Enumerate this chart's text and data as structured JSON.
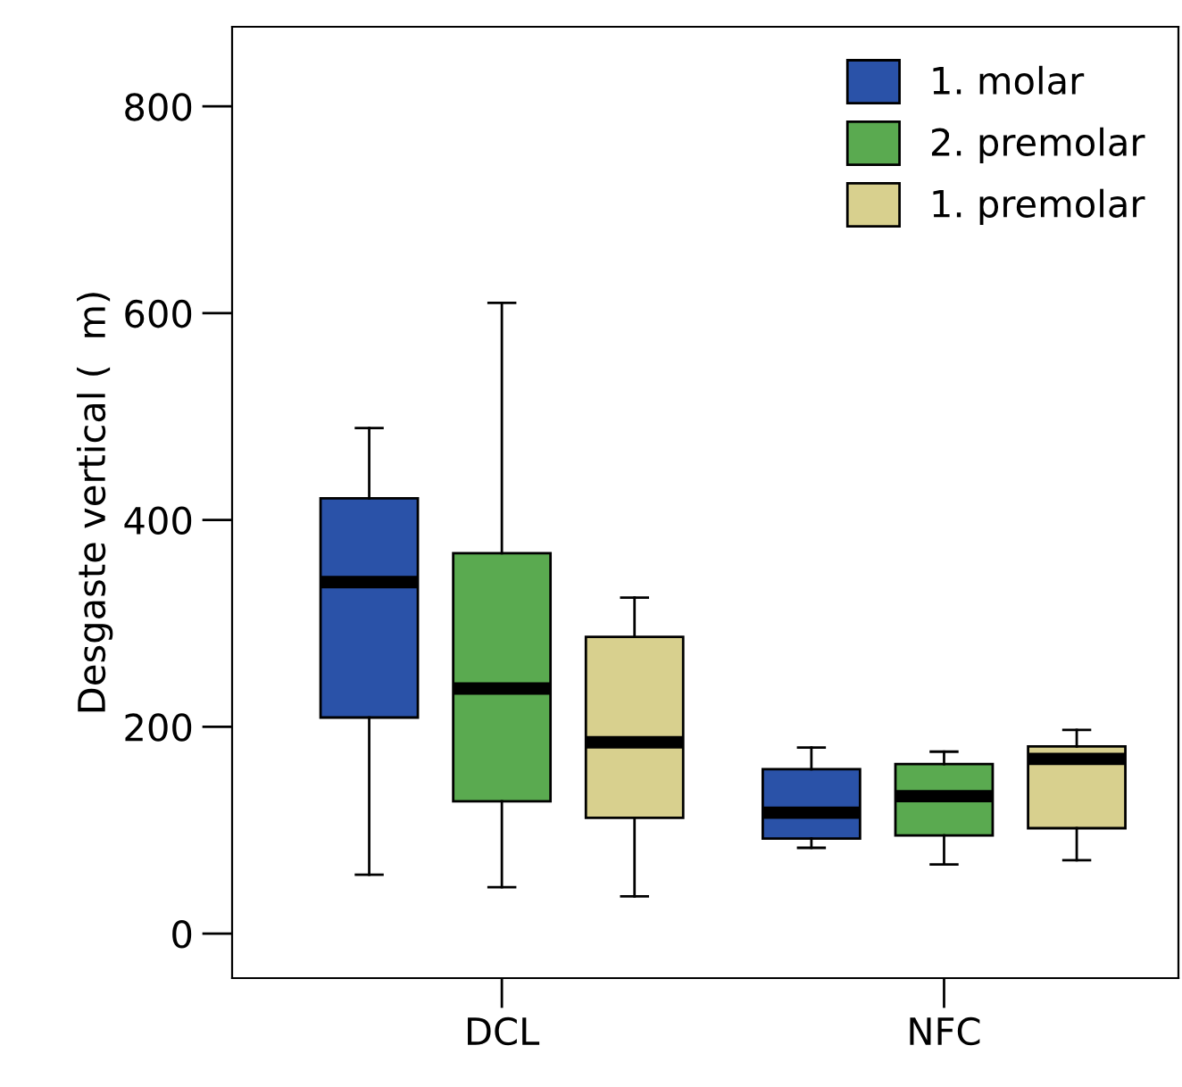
{
  "chart_data": {
    "type": "box",
    "ylabel": "Desgaste vertical (  m)",
    "categories": [
      "DCL",
      "NFC"
    ],
    "ylim": [
      -43,
      877
    ],
    "yticks": [
      0,
      200,
      400,
      600,
      800
    ],
    "grid": false,
    "legend": "top right",
    "series": [
      {
        "name": "1. molar",
        "color": "#2a52a8",
        "boxes": [
          {
            "low": 57,
            "q1": 209,
            "median": 340,
            "q3": 421,
            "high": 489
          },
          {
            "low": 83,
            "q1": 92,
            "median": 117,
            "q3": 159,
            "high": 180
          }
        ]
      },
      {
        "name": "2. premolar",
        "color": "#5aaa50",
        "boxes": [
          {
            "low": 45,
            "q1": 128,
            "median": 237,
            "q3": 368,
            "high": 610
          },
          {
            "low": 67,
            "q1": 95,
            "median": 133,
            "q3": 164,
            "high": 176
          }
        ]
      },
      {
        "name": "1. premolar",
        "color": "#d8d08e",
        "boxes": [
          {
            "low": 36,
            "q1": 112,
            "median": 185,
            "q3": 287,
            "high": 325
          },
          {
            "low": 71,
            "q1": 102,
            "median": 169,
            "q3": 181,
            "high": 197
          }
        ]
      }
    ]
  }
}
